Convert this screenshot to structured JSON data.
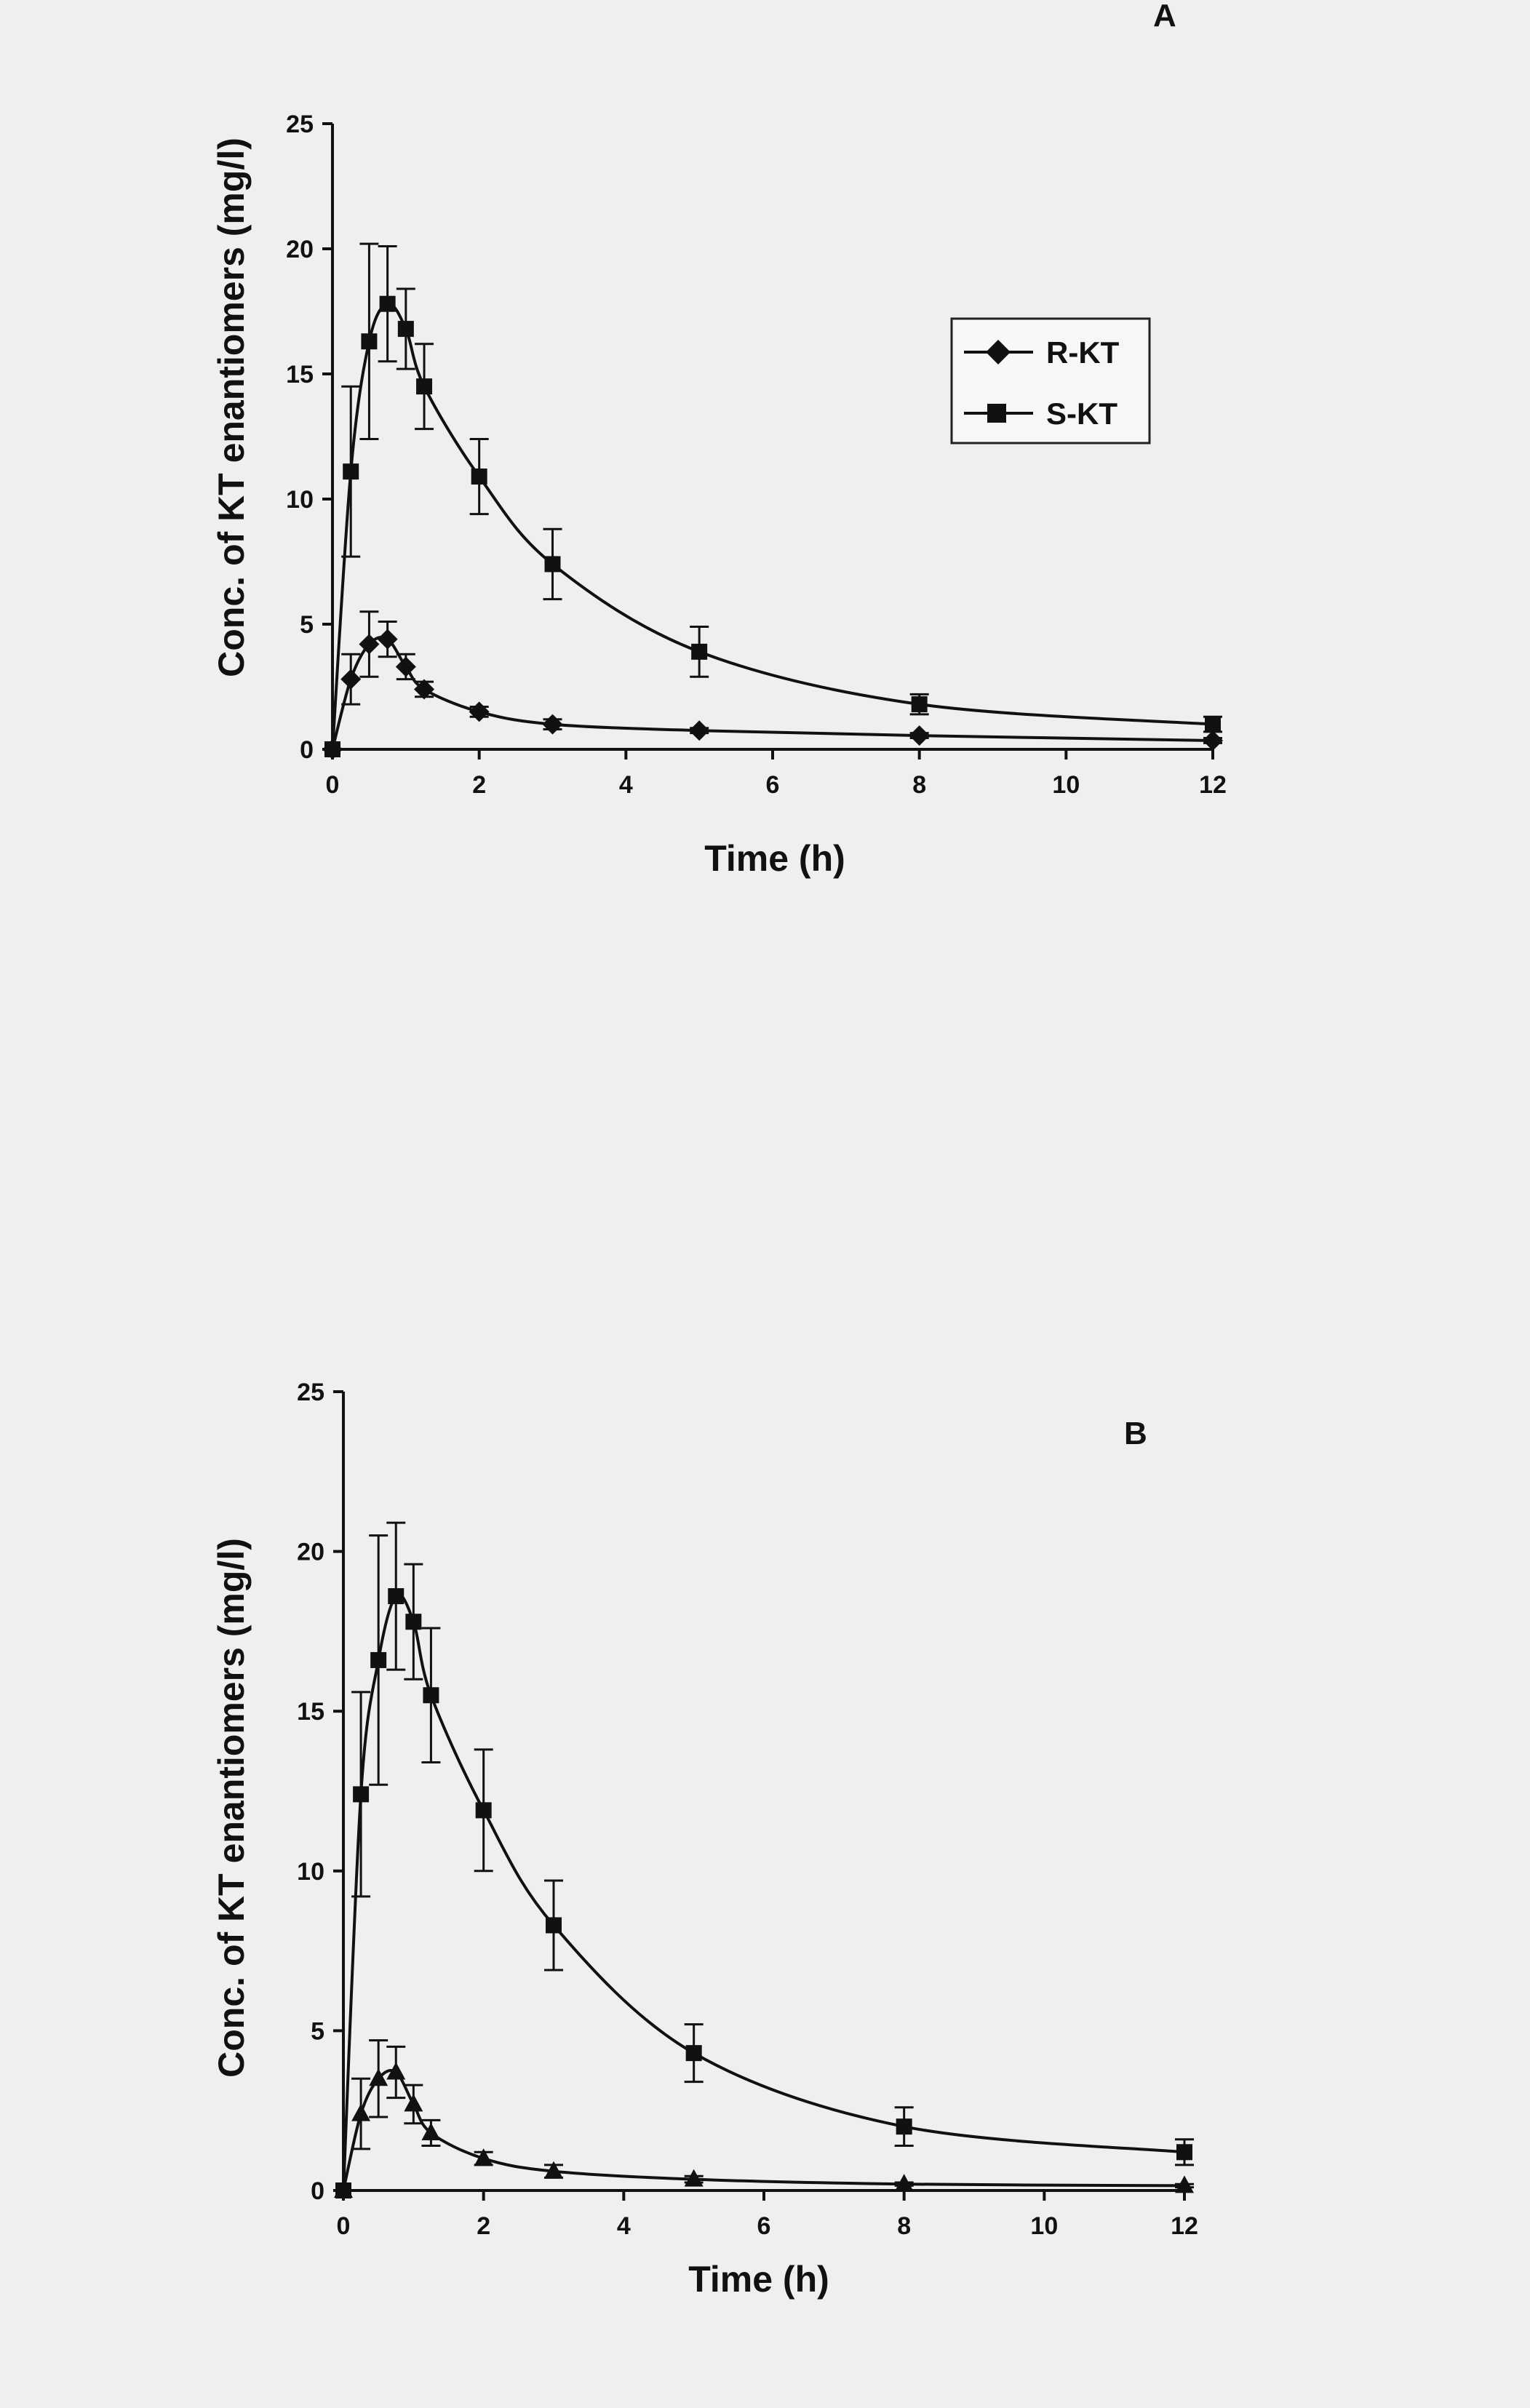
{
  "chart_data": [
    {
      "type": "scatter",
      "panel_label": "A",
      "xlabel": "Time (h)",
      "ylabel": "Conc. of KT enantiomers (mg/l)",
      "xlim": [
        0,
        12
      ],
      "ylim": [
        0,
        25
      ],
      "xticks": [
        0,
        2,
        4,
        6,
        8,
        10,
        12
      ],
      "yticks": [
        0,
        5,
        10,
        15,
        20,
        25
      ],
      "grid": false,
      "legend": {
        "position": "top-right",
        "entries": [
          "R-KT",
          "S-KT"
        ]
      },
      "series": [
        {
          "name": "R-KT",
          "marker": "diamond",
          "color": "#111111",
          "x": [
            0,
            0.25,
            0.5,
            0.75,
            1,
            1.25,
            2,
            3,
            5,
            8,
            12
          ],
          "y": [
            0,
            2.8,
            4.2,
            4.4,
            3.3,
            2.4,
            1.5,
            1.0,
            0.75,
            0.55,
            0.35
          ],
          "err": [
            0,
            1.0,
            1.3,
            0.7,
            0.5,
            0.3,
            0.2,
            0.2,
            0.1,
            0.1,
            0.1
          ]
        },
        {
          "name": "S-KT",
          "marker": "square",
          "color": "#111111",
          "x": [
            0,
            0.25,
            0.5,
            0.75,
            1,
            1.25,
            2,
            3,
            5,
            8,
            12
          ],
          "y": [
            0,
            11.1,
            16.3,
            17.8,
            16.8,
            14.5,
            10.9,
            7.4,
            3.9,
            1.8,
            1.0
          ],
          "err": [
            0,
            3.4,
            3.9,
            2.3,
            1.6,
            1.7,
            1.5,
            1.4,
            1.0,
            0.4,
            0.3
          ]
        }
      ]
    },
    {
      "type": "scatter",
      "panel_label": "B",
      "xlabel": "Time (h)",
      "ylabel": "Conc. of KT enantiomers (mg/l)",
      "xlim": [
        0,
        12
      ],
      "ylim": [
        0,
        25
      ],
      "xticks": [
        0,
        2,
        4,
        6,
        8,
        10,
        12
      ],
      "yticks": [
        0,
        5,
        10,
        15,
        20,
        25
      ],
      "grid": false,
      "series": [
        {
          "marker": "triangle",
          "color": "#111111",
          "x": [
            0,
            0.25,
            0.5,
            0.75,
            1,
            1.25,
            2,
            3,
            5,
            8,
            12
          ],
          "y": [
            0,
            2.4,
            3.5,
            3.7,
            2.7,
            1.8,
            1.0,
            0.6,
            0.35,
            0.2,
            0.15
          ],
          "err": [
            0,
            1.1,
            1.2,
            0.8,
            0.6,
            0.4,
            0.2,
            0.2,
            0.1,
            0.05,
            0.05
          ]
        },
        {
          "marker": "square",
          "color": "#111111",
          "x": [
            0,
            0.25,
            0.5,
            0.75,
            1,
            1.25,
            2,
            3,
            5,
            8,
            12
          ],
          "y": [
            0,
            12.4,
            16.6,
            18.6,
            17.8,
            15.5,
            11.9,
            8.3,
            4.3,
            2.0,
            1.2
          ],
          "err": [
            0,
            3.2,
            3.9,
            2.3,
            1.8,
            2.1,
            1.9,
            1.4,
            0.9,
            0.6,
            0.4
          ]
        }
      ]
    }
  ]
}
